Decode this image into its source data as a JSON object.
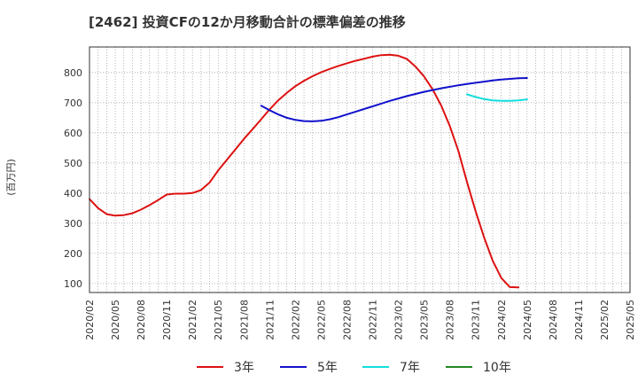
{
  "chart_data": {
    "type": "line",
    "title": "[2462]  投資CFの12か月移動合計の標準偏差の推移",
    "ylabel": "(百万円)",
    "xlabel": "",
    "x_ticks": [
      "2020/02",
      "2020/05",
      "2020/08",
      "2020/11",
      "2021/02",
      "2021/05",
      "2021/08",
      "2021/11",
      "2022/02",
      "2022/05",
      "2022/08",
      "2022/11",
      "2023/02",
      "2023/05",
      "2023/08",
      "2023/11",
      "2024/02",
      "2024/05",
      "2024/08",
      "2024/11",
      "2025/02",
      "2025/05"
    ],
    "y_ticks": [
      100,
      200,
      300,
      400,
      500,
      600,
      700,
      800
    ],
    "ylim": [
      70,
      885
    ],
    "xlim": [
      "2020/02",
      "2025/05"
    ],
    "grid": true,
    "legend_position": "bottom",
    "series": [
      {
        "name": "3年",
        "color": "#dd1111",
        "points": [
          [
            "2020/02",
            380
          ],
          [
            "2020/03",
            350
          ],
          [
            "2020/04",
            330
          ],
          [
            "2020/05",
            325
          ],
          [
            "2020/06",
            327
          ],
          [
            "2020/07",
            333
          ],
          [
            "2020/08",
            345
          ],
          [
            "2020/09",
            360
          ],
          [
            "2020/10",
            377
          ],
          [
            "2020/11",
            395
          ],
          [
            "2020/12",
            398
          ],
          [
            "2021/01",
            398
          ],
          [
            "2021/02",
            400
          ],
          [
            "2021/03",
            410
          ],
          [
            "2021/04",
            435
          ],
          [
            "2021/05",
            475
          ],
          [
            "2021/06",
            510
          ],
          [
            "2021/07",
            545
          ],
          [
            "2021/08",
            580
          ],
          [
            "2021/09",
            612
          ],
          [
            "2021/10",
            645
          ],
          [
            "2021/11",
            678
          ],
          [
            "2021/12",
            708
          ],
          [
            "2022/01",
            733
          ],
          [
            "2022/02",
            755
          ],
          [
            "2022/03",
            773
          ],
          [
            "2022/04",
            788
          ],
          [
            "2022/05",
            801
          ],
          [
            "2022/06",
            812
          ],
          [
            "2022/07",
            822
          ],
          [
            "2022/08",
            831
          ],
          [
            "2022/09",
            839
          ],
          [
            "2022/10",
            846
          ],
          [
            "2022/11",
            853
          ],
          [
            "2022/12",
            858
          ],
          [
            "2023/01",
            859
          ],
          [
            "2023/02",
            856
          ],
          [
            "2023/03",
            845
          ],
          [
            "2023/04",
            820
          ],
          [
            "2023/05",
            787
          ],
          [
            "2023/06",
            744
          ],
          [
            "2023/07",
            690
          ],
          [
            "2023/08",
            622
          ],
          [
            "2023/09",
            540
          ],
          [
            "2023/10",
            437
          ],
          [
            "2023/11",
            340
          ],
          [
            "2023/12",
            252
          ],
          [
            "2024/01",
            175
          ],
          [
            "2024/02",
            118
          ],
          [
            "2024/03",
            88
          ],
          [
            "2024/04",
            87
          ]
        ]
      },
      {
        "name": "5年",
        "color": "#1111cc",
        "points": [
          [
            "2021/10",
            690
          ],
          [
            "2021/11",
            675
          ],
          [
            "2021/12",
            661
          ],
          [
            "2022/01",
            650
          ],
          [
            "2022/02",
            643
          ],
          [
            "2022/03",
            639
          ],
          [
            "2022/04",
            638
          ],
          [
            "2022/05",
            640
          ],
          [
            "2022/06",
            645
          ],
          [
            "2022/07",
            652
          ],
          [
            "2022/08",
            661
          ],
          [
            "2022/09",
            670
          ],
          [
            "2022/10",
            679
          ],
          [
            "2022/11",
            688
          ],
          [
            "2022/12",
            697
          ],
          [
            "2023/01",
            706
          ],
          [
            "2023/02",
            714
          ],
          [
            "2023/03",
            722
          ],
          [
            "2023/04",
            729
          ],
          [
            "2023/05",
            736
          ],
          [
            "2023/06",
            742
          ],
          [
            "2023/07",
            748
          ],
          [
            "2023/08",
            753
          ],
          [
            "2023/09",
            758
          ],
          [
            "2023/10",
            762
          ],
          [
            "2023/11",
            766
          ],
          [
            "2023/12",
            770
          ],
          [
            "2024/01",
            774
          ],
          [
            "2024/02",
            777
          ],
          [
            "2024/03",
            779
          ],
          [
            "2024/04",
            781
          ],
          [
            "2024/05",
            782
          ]
        ]
      },
      {
        "name": "7年",
        "color": "#11dddd",
        "points": [
          [
            "2023/10",
            728
          ],
          [
            "2023/11",
            719
          ],
          [
            "2023/12",
            712
          ],
          [
            "2024/01",
            708
          ],
          [
            "2024/02",
            706
          ],
          [
            "2024/03",
            706
          ],
          [
            "2024/04",
            708
          ],
          [
            "2024/05",
            711
          ]
        ]
      },
      {
        "name": "10年",
        "color": "#228822",
        "points": []
      }
    ]
  }
}
